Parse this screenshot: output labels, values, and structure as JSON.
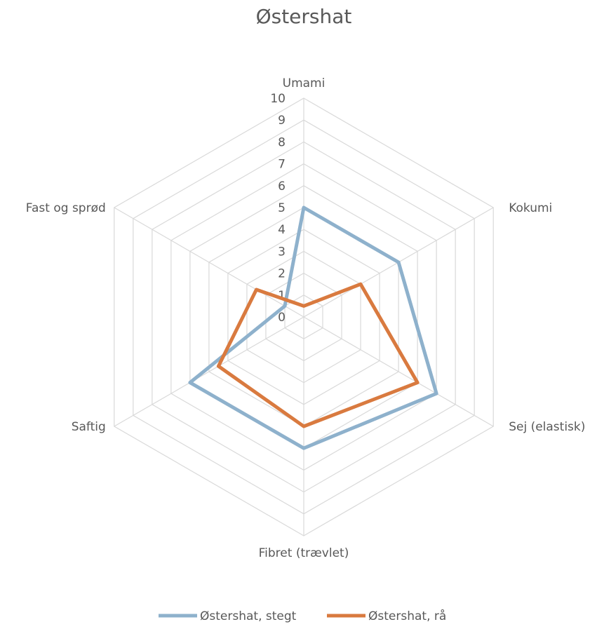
{
  "chart_data": {
    "type": "radar",
    "title": "Østershat",
    "axes": [
      "Umami",
      "Kokumi",
      "Sej (elastisk)",
      "Fibret (trævlet)",
      "Saftig",
      "Fast og sprød"
    ],
    "r_ticks": [
      "0",
      "1",
      "2",
      "3",
      "4",
      "5",
      "6",
      "7",
      "8",
      "9",
      "10"
    ],
    "rlim": [
      0,
      10
    ],
    "grid": true,
    "legend_position": "bottom",
    "series": [
      {
        "name": "Østershat, stegt",
        "values": [
          5,
          5,
          7,
          6,
          6,
          1
        ],
        "color": "#8eb1cc"
      },
      {
        "name": "Østershat, rå",
        "values": [
          0.5,
          3,
          6,
          5,
          4.5,
          2.5
        ],
        "color": "#d97a3f"
      }
    ]
  }
}
